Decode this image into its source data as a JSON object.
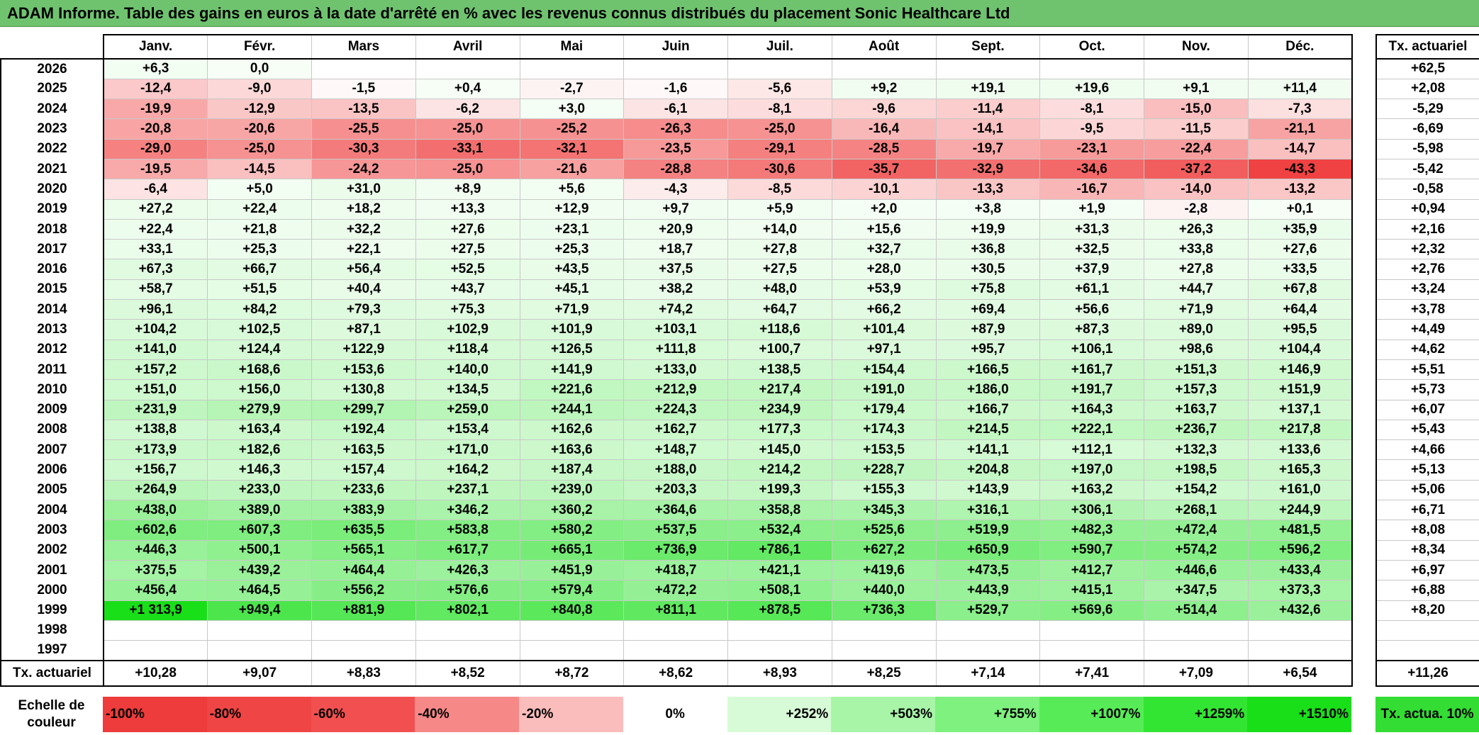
{
  "title": "ADAM Informe. Table des gains en euros à la date d'arrêté en % avec les revenus connus distribués du placement Sonic Healthcare Ltd",
  "months": [
    "Janv.",
    "Févr.",
    "Mars",
    "Avril",
    "Mai",
    "Juin",
    "Juil.",
    "Août",
    "Sept.",
    "Oct.",
    "Nov.",
    "Déc."
  ],
  "rate_header": "Tx. actuariel",
  "rows": [
    {
      "year": "2026",
      "values": [
        "+6,3",
        "0,0",
        "",
        "",
        "",
        "",
        "",
        "",
        "",
        "",
        "",
        ""
      ],
      "rate": "+62,5"
    },
    {
      "year": "2025",
      "values": [
        "-12,4",
        "-9,0",
        "-1,5",
        "+0,4",
        "-2,7",
        "-1,6",
        "-5,6",
        "+9,2",
        "+19,1",
        "+19,6",
        "+9,1",
        "+11,4"
      ],
      "rate": "+2,08"
    },
    {
      "year": "2024",
      "values": [
        "-19,9",
        "-12,9",
        "-13,5",
        "-6,2",
        "+3,0",
        "-6,1",
        "-8,1",
        "-9,6",
        "-11,4",
        "-8,1",
        "-15,0",
        "-7,3"
      ],
      "rate": "-5,29"
    },
    {
      "year": "2023",
      "values": [
        "-20,8",
        "-20,6",
        "-25,5",
        "-25,0",
        "-25,2",
        "-26,3",
        "-25,0",
        "-16,4",
        "-14,1",
        "-9,5",
        "-11,5",
        "-21,1"
      ],
      "rate": "-6,69"
    },
    {
      "year": "2022",
      "values": [
        "-29,0",
        "-25,0",
        "-30,3",
        "-33,1",
        "-32,1",
        "-23,5",
        "-29,1",
        "-28,5",
        "-19,7",
        "-23,1",
        "-22,4",
        "-14,7"
      ],
      "rate": "-5,98"
    },
    {
      "year": "2021",
      "values": [
        "-19,5",
        "-14,5",
        "-24,2",
        "-25,0",
        "-21,6",
        "-28,8",
        "-30,6",
        "-35,7",
        "-32,9",
        "-34,6",
        "-37,2",
        "-43,3"
      ],
      "rate": "-5,42"
    },
    {
      "year": "2020",
      "values": [
        "-6,4",
        "+5,0",
        "+31,0",
        "+8,9",
        "+5,6",
        "-4,3",
        "-8,5",
        "-10,1",
        "-13,3",
        "-16,7",
        "-14,0",
        "-13,2"
      ],
      "rate": "-0,58"
    },
    {
      "year": "2019",
      "values": [
        "+27,2",
        "+22,4",
        "+18,2",
        "+13,3",
        "+12,9",
        "+9,7",
        "+5,9",
        "+2,0",
        "+3,8",
        "+1,9",
        "-2,8",
        "+0,1"
      ],
      "rate": "+0,94"
    },
    {
      "year": "2018",
      "values": [
        "+22,4",
        "+21,8",
        "+32,2",
        "+27,6",
        "+23,1",
        "+20,9",
        "+14,0",
        "+15,6",
        "+19,9",
        "+31,3",
        "+26,3",
        "+35,9"
      ],
      "rate": "+2,16"
    },
    {
      "year": "2017",
      "values": [
        "+33,1",
        "+25,3",
        "+22,1",
        "+27,5",
        "+25,3",
        "+18,7",
        "+27,8",
        "+32,7",
        "+36,8",
        "+32,5",
        "+33,8",
        "+27,6"
      ],
      "rate": "+2,32"
    },
    {
      "year": "2016",
      "values": [
        "+67,3",
        "+66,7",
        "+56,4",
        "+52,5",
        "+43,5",
        "+37,5",
        "+27,5",
        "+28,0",
        "+30,5",
        "+37,9",
        "+27,8",
        "+33,5"
      ],
      "rate": "+2,76"
    },
    {
      "year": "2015",
      "values": [
        "+58,7",
        "+51,5",
        "+40,4",
        "+43,7",
        "+45,1",
        "+38,2",
        "+48,0",
        "+53,9",
        "+75,8",
        "+61,1",
        "+44,7",
        "+67,8"
      ],
      "rate": "+3,24"
    },
    {
      "year": "2014",
      "values": [
        "+96,1",
        "+84,2",
        "+79,3",
        "+75,3",
        "+71,9",
        "+74,2",
        "+64,7",
        "+66,2",
        "+69,4",
        "+56,6",
        "+71,9",
        "+64,4"
      ],
      "rate": "+3,78"
    },
    {
      "year": "2013",
      "values": [
        "+104,2",
        "+102,5",
        "+87,1",
        "+102,9",
        "+101,9",
        "+103,1",
        "+118,6",
        "+101,4",
        "+87,9",
        "+87,3",
        "+89,0",
        "+95,5"
      ],
      "rate": "+4,49"
    },
    {
      "year": "2012",
      "values": [
        "+141,0",
        "+124,4",
        "+122,9",
        "+118,4",
        "+126,5",
        "+111,8",
        "+100,7",
        "+97,1",
        "+95,7",
        "+106,1",
        "+98,6",
        "+104,4"
      ],
      "rate": "+4,62"
    },
    {
      "year": "2011",
      "values": [
        "+157,2",
        "+168,6",
        "+153,6",
        "+140,0",
        "+141,9",
        "+133,0",
        "+138,5",
        "+154,4",
        "+166,5",
        "+161,7",
        "+151,3",
        "+146,9"
      ],
      "rate": "+5,51"
    },
    {
      "year": "2010",
      "values": [
        "+151,0",
        "+156,0",
        "+130,8",
        "+134,5",
        "+221,6",
        "+212,9",
        "+217,4",
        "+191,0",
        "+186,0",
        "+191,7",
        "+157,3",
        "+151,9"
      ],
      "rate": "+5,73"
    },
    {
      "year": "2009",
      "values": [
        "+231,9",
        "+279,9",
        "+299,7",
        "+259,0",
        "+244,1",
        "+224,3",
        "+234,9",
        "+179,4",
        "+166,7",
        "+164,3",
        "+163,7",
        "+137,1"
      ],
      "rate": "+6,07"
    },
    {
      "year": "2008",
      "values": [
        "+138,8",
        "+163,4",
        "+192,4",
        "+153,4",
        "+162,6",
        "+162,7",
        "+177,3",
        "+174,3",
        "+214,5",
        "+222,1",
        "+236,7",
        "+217,8"
      ],
      "rate": "+5,43"
    },
    {
      "year": "2007",
      "values": [
        "+173,9",
        "+182,6",
        "+163,5",
        "+171,0",
        "+163,6",
        "+148,7",
        "+145,0",
        "+153,5",
        "+141,1",
        "+112,1",
        "+132,3",
        "+133,6"
      ],
      "rate": "+4,66"
    },
    {
      "year": "2006",
      "values": [
        "+156,7",
        "+146,3",
        "+157,4",
        "+164,2",
        "+187,4",
        "+188,0",
        "+214,2",
        "+228,7",
        "+204,8",
        "+197,0",
        "+198,5",
        "+165,3"
      ],
      "rate": "+5,13"
    },
    {
      "year": "2005",
      "values": [
        "+264,9",
        "+233,0",
        "+233,6",
        "+237,1",
        "+239,0",
        "+203,3",
        "+199,3",
        "+155,3",
        "+143,9",
        "+163,2",
        "+154,2",
        "+161,0"
      ],
      "rate": "+5,06"
    },
    {
      "year": "2004",
      "values": [
        "+438,0",
        "+389,0",
        "+383,9",
        "+346,2",
        "+360,2",
        "+364,6",
        "+358,8",
        "+345,3",
        "+316,1",
        "+306,1",
        "+268,1",
        "+244,9"
      ],
      "rate": "+6,71"
    },
    {
      "year": "2003",
      "values": [
        "+602,6",
        "+607,3",
        "+635,5",
        "+583,8",
        "+580,2",
        "+537,5",
        "+532,4",
        "+525,6",
        "+519,9",
        "+482,3",
        "+472,4",
        "+481,5"
      ],
      "rate": "+8,08"
    },
    {
      "year": "2002",
      "values": [
        "+446,3",
        "+500,1",
        "+565,1",
        "+617,7",
        "+665,1",
        "+736,9",
        "+786,1",
        "+627,2",
        "+650,9",
        "+590,7",
        "+574,2",
        "+596,2"
      ],
      "rate": "+8,34"
    },
    {
      "year": "2001",
      "values": [
        "+375,5",
        "+439,2",
        "+464,4",
        "+426,3",
        "+451,9",
        "+418,7",
        "+421,1",
        "+419,6",
        "+473,5",
        "+412,7",
        "+446,6",
        "+433,4"
      ],
      "rate": "+6,97"
    },
    {
      "year": "2000",
      "values": [
        "+456,4",
        "+464,5",
        "+556,2",
        "+576,6",
        "+579,4",
        "+472,2",
        "+508,1",
        "+440,0",
        "+443,9",
        "+415,1",
        "+347,5",
        "+373,3"
      ],
      "rate": "+6,88"
    },
    {
      "year": "1999",
      "values": [
        "+1 313,9",
        "+949,4",
        "+881,9",
        "+802,1",
        "+840,8",
        "+811,1",
        "+878,5",
        "+736,3",
        "+529,7",
        "+569,6",
        "+514,4",
        "+432,6"
      ],
      "rate": "+8,20"
    },
    {
      "year": "1998",
      "values": [
        "",
        "",
        "",
        "",
        "",
        "",
        "",
        "",
        "",
        "",
        "",
        ""
      ],
      "rate": ""
    },
    {
      "year": "1997",
      "values": [
        "",
        "",
        "",
        "",
        "",
        "",
        "",
        "",
        "",
        "",
        "",
        ""
      ],
      "rate": ""
    }
  ],
  "summary": {
    "label": "Tx. actuariel",
    "values": [
      "+10,28",
      "+9,07",
      "+8,83",
      "+8,52",
      "+8,72",
      "+8,62",
      "+8,93",
      "+8,25",
      "+7,14",
      "+7,41",
      "+7,09",
      "+6,54"
    ],
    "rate": "+11,26"
  },
  "scale": {
    "label": "Echelle de couleur",
    "cells": [
      {
        "text": "-100%",
        "color": "#ee3b3b",
        "kind": "neg"
      },
      {
        "text": "-80%",
        "color": "#f04545",
        "kind": "neg"
      },
      {
        "text": "-60%",
        "color": "#f25050",
        "kind": "neg"
      },
      {
        "text": "-40%",
        "color": "#f78888",
        "kind": "neg"
      },
      {
        "text": "-20%",
        "color": "#fbbcbc",
        "kind": "neg"
      },
      {
        "text": "0%",
        "color": "#ffffff",
        "kind": "zero"
      },
      {
        "text": "+252%",
        "color": "#d7fbd7",
        "kind": "pos"
      },
      {
        "text": "+503%",
        "color": "#a8f5a8",
        "kind": "pos"
      },
      {
        "text": "+755%",
        "color": "#7ef17e",
        "kind": "pos"
      },
      {
        "text": "+1007%",
        "color": "#57ec57",
        "kind": "pos"
      },
      {
        "text": "+1259%",
        "color": "#33e533",
        "kind": "pos"
      },
      {
        "text": "+1510%",
        "color": "#19df19",
        "kind": "pos"
      }
    ],
    "legend": "Tx. actua. 10%",
    "legend_color": "#33dd33"
  },
  "colors": {
    "title_bg": "#6fc36f",
    "negative_max": "#ef3b3b",
    "positive_max": "#19df19"
  }
}
